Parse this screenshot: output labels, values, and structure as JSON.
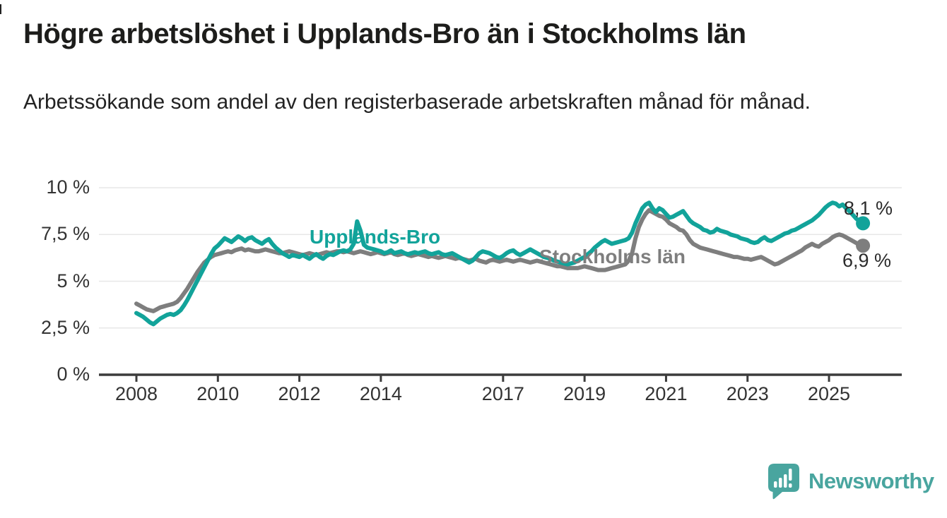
{
  "header": {
    "title": "Högre arbetslöshet i Upplands-Bro än i Stockholms län",
    "subtitle": "Arbetssökande som andel av den registerbaserade arbetskraften månad för månad."
  },
  "branding": {
    "logo_text": "Newsworthy",
    "logo_icon": "bar-chart-speech-bubble-icon",
    "logo_color": "#49a59f"
  },
  "colors": {
    "upplands_bro_line": "#12a39a",
    "stockholms_lan_line": "#7e7e7e",
    "axis": "#3c3c3c",
    "grid": "#e7e7e7",
    "text": "#1d1d1b"
  },
  "chart_data": {
    "type": "line",
    "title": "Högre arbetslöshet i Upplands-Bro än i Stockholms län",
    "subtitle": "Arbetssökande som andel av den registerbaserade arbetskraften månad för månad.",
    "x_start": "2008-01",
    "x_end": "2025-11",
    "x_interval": "monthly",
    "ylim": [
      0,
      10
    ],
    "grid": "horizontal",
    "legend_position": "inline-labels",
    "y_ticks": [
      {
        "label": "10 %",
        "value": 10
      },
      {
        "label": "7,5 %",
        "value": 7.5
      },
      {
        "label": "5 %",
        "value": 5
      },
      {
        "label": "2,5 %",
        "value": 2.5
      },
      {
        "label": "0 %",
        "value": 0
      }
    ],
    "x_ticks": [
      {
        "label": "2008",
        "year": 2008
      },
      {
        "label": "2010",
        "year": 2010
      },
      {
        "label": "2012",
        "year": 2012
      },
      {
        "label": "2014",
        "year": 2014
      },
      {
        "label": "2017",
        "year": 2017
      },
      {
        "label": "2019",
        "year": 2019
      },
      {
        "label": "2021",
        "year": 2021
      },
      {
        "label": "2023",
        "year": 2023
      },
      {
        "label": "2025",
        "year": 2025
      }
    ],
    "series": [
      {
        "name": "Upplands-Bro",
        "color": "#12a39a",
        "latest_label": "8,1 %",
        "latest_value": 8.1,
        "values": [
          3.3,
          3.2,
          3.1,
          2.95,
          2.8,
          2.7,
          2.85,
          3.0,
          3.1,
          3.2,
          3.25,
          3.2,
          3.3,
          3.45,
          3.7,
          4.0,
          4.35,
          4.7,
          5.05,
          5.4,
          5.75,
          6.1,
          6.45,
          6.75,
          6.9,
          7.1,
          7.3,
          7.2,
          7.1,
          7.25,
          7.4,
          7.3,
          7.15,
          7.3,
          7.35,
          7.2,
          7.1,
          7.0,
          7.15,
          7.25,
          7.0,
          6.8,
          6.65,
          6.5,
          6.4,
          6.3,
          6.4,
          6.35,
          6.3,
          6.4,
          6.3,
          6.2,
          6.35,
          6.45,
          6.3,
          6.2,
          6.35,
          6.45,
          6.4,
          6.5,
          6.6,
          6.65,
          6.6,
          6.7,
          7.0,
          8.2,
          7.7,
          6.95,
          6.8,
          6.75,
          6.7,
          6.65,
          6.6,
          6.5,
          6.55,
          6.65,
          6.5,
          6.55,
          6.6,
          6.5,
          6.45,
          6.5,
          6.55,
          6.5,
          6.55,
          6.6,
          6.5,
          6.45,
          6.5,
          6.55,
          6.45,
          6.4,
          6.45,
          6.5,
          6.4,
          6.3,
          6.2,
          6.1,
          6.0,
          6.1,
          6.3,
          6.5,
          6.6,
          6.55,
          6.5,
          6.4,
          6.3,
          6.25,
          6.35,
          6.5,
          6.6,
          6.65,
          6.5,
          6.4,
          6.5,
          6.6,
          6.7,
          6.6,
          6.5,
          6.4,
          6.3,
          6.25,
          6.2,
          6.1,
          6.05,
          6.0,
          5.95,
          5.9,
          5.95,
          6.0,
          6.1,
          6.2,
          6.3,
          6.45,
          6.6,
          6.8,
          6.95,
          7.1,
          7.2,
          7.1,
          7.0,
          7.05,
          7.1,
          7.15,
          7.2,
          7.3,
          7.6,
          8.1,
          8.5,
          8.9,
          9.1,
          9.2,
          8.9,
          8.7,
          8.9,
          8.8,
          8.6,
          8.4,
          8.45,
          8.55,
          8.65,
          8.75,
          8.5,
          8.25,
          8.1,
          8.0,
          7.9,
          7.75,
          7.7,
          7.6,
          7.65,
          7.8,
          7.7,
          7.65,
          7.6,
          7.5,
          7.45,
          7.4,
          7.3,
          7.25,
          7.2,
          7.1,
          7.05,
          7.1,
          7.25,
          7.35,
          7.2,
          7.15,
          7.25,
          7.35,
          7.45,
          7.55,
          7.6,
          7.7,
          7.75,
          7.85,
          7.95,
          8.05,
          8.15,
          8.25,
          8.4,
          8.55,
          8.75,
          8.95,
          9.1,
          9.2,
          9.15,
          9.0,
          9.1,
          8.9,
          8.75,
          8.55,
          8.35,
          8.2,
          8.1
        ]
      },
      {
        "name": "Stockholms län",
        "color": "#7e7e7e",
        "latest_label": "6,9 %",
        "latest_value": 6.9,
        "values": [
          3.8,
          3.7,
          3.6,
          3.5,
          3.45,
          3.4,
          3.5,
          3.6,
          3.65,
          3.7,
          3.75,
          3.8,
          3.9,
          4.1,
          4.35,
          4.6,
          4.9,
          5.2,
          5.5,
          5.75,
          6.0,
          6.15,
          6.3,
          6.4,
          6.45,
          6.5,
          6.55,
          6.6,
          6.55,
          6.65,
          6.7,
          6.75,
          6.65,
          6.7,
          6.65,
          6.6,
          6.6,
          6.65,
          6.7,
          6.65,
          6.6,
          6.55,
          6.5,
          6.5,
          6.55,
          6.6,
          6.55,
          6.5,
          6.45,
          6.4,
          6.45,
          6.5,
          6.45,
          6.4,
          6.45,
          6.5,
          6.55,
          6.5,
          6.55,
          6.6,
          6.6,
          6.55,
          6.6,
          6.55,
          6.5,
          6.55,
          6.6,
          6.55,
          6.5,
          6.45,
          6.5,
          6.55,
          6.5,
          6.45,
          6.5,
          6.55,
          6.45,
          6.4,
          6.45,
          6.5,
          6.4,
          6.35,
          6.4,
          6.45,
          6.4,
          6.35,
          6.3,
          6.35,
          6.3,
          6.25,
          6.3,
          6.35,
          6.3,
          6.25,
          6.2,
          6.25,
          6.2,
          6.15,
          6.1,
          6.15,
          6.2,
          6.1,
          6.05,
          6.0,
          6.1,
          6.15,
          6.1,
          6.05,
          6.1,
          6.15,
          6.1,
          6.05,
          6.1,
          6.15,
          6.1,
          6.05,
          6.0,
          6.05,
          6.1,
          6.05,
          6.0,
          5.95,
          5.9,
          5.85,
          5.8,
          5.8,
          5.75,
          5.7,
          5.7,
          5.7,
          5.7,
          5.75,
          5.8,
          5.75,
          5.7,
          5.65,
          5.6,
          5.6,
          5.6,
          5.65,
          5.7,
          5.75,
          5.8,
          5.85,
          5.9,
          6.1,
          6.5,
          7.3,
          7.9,
          8.3,
          8.6,
          8.8,
          8.7,
          8.6,
          8.5,
          8.45,
          8.3,
          8.1,
          8.0,
          7.9,
          7.75,
          7.7,
          7.5,
          7.2,
          7.0,
          6.9,
          6.8,
          6.75,
          6.7,
          6.65,
          6.6,
          6.55,
          6.5,
          6.45,
          6.4,
          6.35,
          6.3,
          6.3,
          6.25,
          6.2,
          6.2,
          6.15,
          6.2,
          6.25,
          6.3,
          6.2,
          6.1,
          6.0,
          5.9,
          5.95,
          6.05,
          6.15,
          6.25,
          6.35,
          6.45,
          6.55,
          6.65,
          6.8,
          6.9,
          7.0,
          6.9,
          6.85,
          7.0,
          7.1,
          7.2,
          7.35,
          7.45,
          7.5,
          7.45,
          7.35,
          7.25,
          7.15,
          7.05,
          6.95,
          6.9
        ]
      }
    ]
  }
}
